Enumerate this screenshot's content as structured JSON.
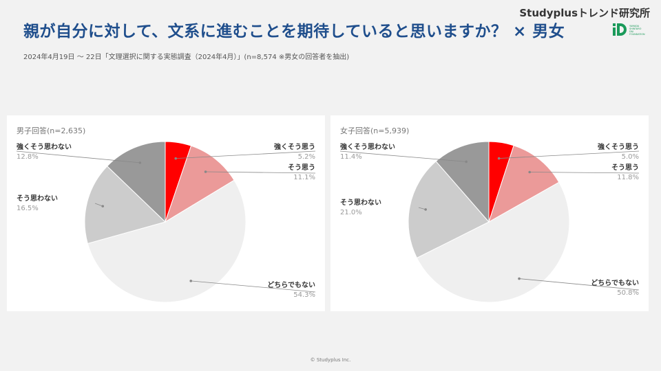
{
  "header": {
    "title": "親が自分に対して、文系に進むことを期待していると思いますか？ × 男女",
    "subtitle": "2024年4月19日 〜 22日「文理選択に関する実態調査（2024年4月）」(n=8,574 ※男女の回答者を抽出)",
    "brand": "Studyplusトレンド研究所",
    "logo_text": "YAMADA SHINTARO D&I FOUNDATION"
  },
  "footer": {
    "copyright": "© Studyplus Inc."
  },
  "colors": {
    "strongly_think": "#ff0000",
    "think": "#eb9a99",
    "neither": "#efefef",
    "dont_think": "#cccccc",
    "strongly_dont_think": "#999999",
    "title": "#1f4e8c",
    "logo_green": "#1a9a5a"
  },
  "chart_data": [
    {
      "type": "pie",
      "title": "男子回答(n=2,635)",
      "categories": [
        "強くそう思う",
        "そう思う",
        "どちらでもない",
        "そう思わない",
        "強くそう思わない"
      ],
      "values": [
        5.2,
        11.1,
        54.3,
        16.5,
        12.8
      ],
      "value_labels": [
        "5.2%",
        "11.1%",
        "54.3%",
        "16.5%",
        "12.8%"
      ]
    },
    {
      "type": "pie",
      "title": "女子回答(n=5,939)",
      "categories": [
        "強くそう思う",
        "そう思う",
        "どちらでもない",
        "そう思わない",
        "強くそう思わない"
      ],
      "values": [
        5.0,
        11.8,
        50.8,
        21.0,
        11.4
      ],
      "value_labels": [
        "5.0%",
        "11.8%",
        "50.8%",
        "21.0%",
        "11.4%"
      ]
    }
  ]
}
